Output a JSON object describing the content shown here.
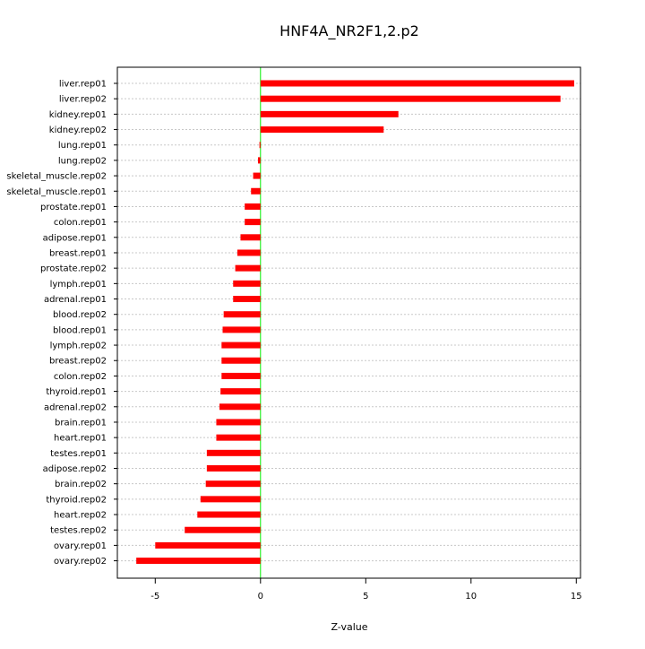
{
  "chart_data": {
    "type": "bar",
    "orientation": "horizontal",
    "title": "HNF4A_NR2F1,2.p2",
    "xlabel": "Z-value",
    "ylabel": "",
    "xlim": [
      -6.8,
      15.2
    ],
    "xticks": [
      -5,
      0,
      5,
      10,
      15
    ],
    "grid": true,
    "zero_line_color": "#00ee00",
    "bar_color": "#ff0000",
    "categories": [
      "liver.rep01",
      "liver.rep02",
      "kidney.rep01",
      "kidney.rep02",
      "lung.rep01",
      "lung.rep02",
      "skeletal_muscle.rep02",
      "skeletal_muscle.rep01",
      "prostate.rep01",
      "colon.rep01",
      "adipose.rep01",
      "breast.rep01",
      "prostate.rep02",
      "lymph.rep01",
      "adrenal.rep01",
      "blood.rep02",
      "blood.rep01",
      "lymph.rep02",
      "breast.rep02",
      "colon.rep02",
      "thyroid.rep01",
      "adrenal.rep02",
      "brain.rep01",
      "heart.rep01",
      "testes.rep01",
      "adipose.rep02",
      "brain.rep02",
      "thyroid.rep02",
      "heart.rep02",
      "testes.rep02",
      "ovary.rep01",
      "ovary.rep02"
    ],
    "values": [
      14.9,
      14.25,
      6.55,
      5.85,
      -0.05,
      -0.12,
      -0.35,
      -0.45,
      -0.75,
      -0.75,
      -0.95,
      -1.1,
      -1.2,
      -1.3,
      -1.3,
      -1.75,
      -1.8,
      -1.85,
      -1.85,
      -1.85,
      -1.9,
      -1.95,
      -2.1,
      -2.1,
      -2.55,
      -2.55,
      -2.6,
      -2.85,
      -3.0,
      -3.6,
      -5.0,
      -5.9
    ]
  }
}
